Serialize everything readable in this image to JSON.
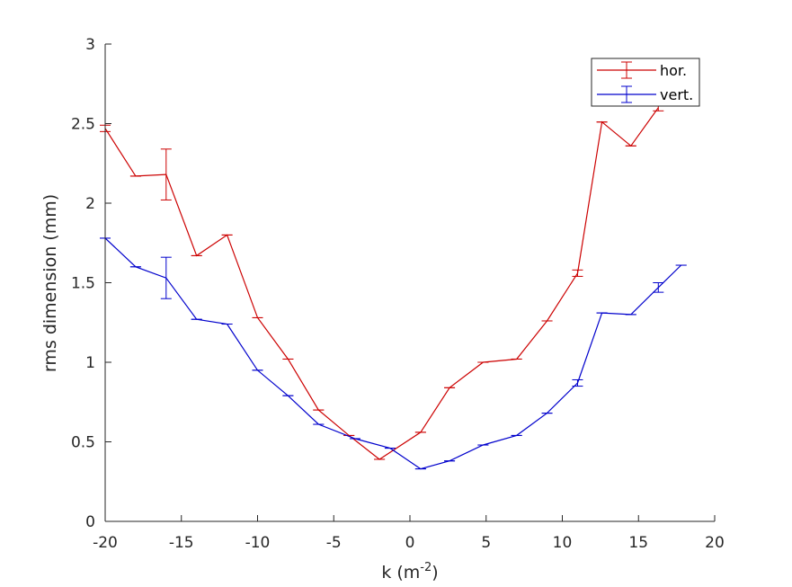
{
  "chart_data": {
    "type": "line",
    "title": "",
    "xlabel": "k (m",
    "xlabel_sup": "-2",
    "xlabel_suffix": ")",
    "ylabel": "rms dimension (mm)",
    "xlim": [
      -20,
      20
    ],
    "ylim": [
      0,
      3
    ],
    "xticks": [
      -20,
      -15,
      -10,
      -5,
      0,
      5,
      10,
      15,
      20
    ],
    "xtick_labels": [
      "-20",
      "-15",
      "-10",
      "-5",
      "0",
      "5",
      "10",
      "15",
      "20"
    ],
    "yticks": [
      0,
      0.5,
      1,
      1.5,
      2,
      2.5,
      3
    ],
    "ytick_labels": [
      "0",
      "0.5",
      "1",
      "1.5",
      "2",
      "2.5",
      "3"
    ],
    "grid": false,
    "legend_position": "top-right",
    "series": [
      {
        "name": "hor.",
        "color": "#cc0000",
        "x": [
          -20,
          -18,
          -16,
          -14,
          -12,
          -10,
          -8,
          -6,
          -4,
          -2,
          0.7,
          2.6,
          4.8,
          7,
          9,
          11,
          12.6,
          14.5,
          16.3
        ],
        "y": [
          2.47,
          2.17,
          2.18,
          1.67,
          1.8,
          1.28,
          1.02,
          0.7,
          0.54,
          0.39,
          0.56,
          0.84,
          1.0,
          1.02,
          1.26,
          1.56,
          2.51,
          2.36,
          2.6
        ],
        "err": [
          0.02,
          0.0,
          0.16,
          0.0,
          0.0,
          0.0,
          0.0,
          0.0,
          0.0,
          0.0,
          0.0,
          0.0,
          0.0,
          0.0,
          0.0,
          0.02,
          0.0,
          0.0,
          0.02
        ]
      },
      {
        "name": "vert.",
        "color": "#0000cc",
        "x": [
          -20,
          -18,
          -16,
          -14,
          -12,
          -10,
          -8,
          -6,
          -3.6,
          -1.3,
          0.7,
          2.6,
          4.8,
          7,
          9,
          11,
          12.6,
          14.5,
          16.3,
          17.8
        ],
        "y": [
          1.78,
          1.6,
          1.53,
          1.27,
          1.24,
          0.95,
          0.79,
          0.61,
          0.52,
          0.46,
          0.33,
          0.38,
          0.48,
          0.54,
          0.68,
          0.87,
          1.31,
          1.3,
          1.47,
          1.61
        ],
        "err": [
          0.0,
          0.0,
          0.13,
          0.0,
          0.0,
          0.0,
          0.0,
          0.0,
          0.0,
          0.0,
          0.0,
          0.0,
          0.0,
          0.0,
          0.0,
          0.02,
          0.0,
          0.0,
          0.03,
          0.0
        ]
      }
    ]
  }
}
